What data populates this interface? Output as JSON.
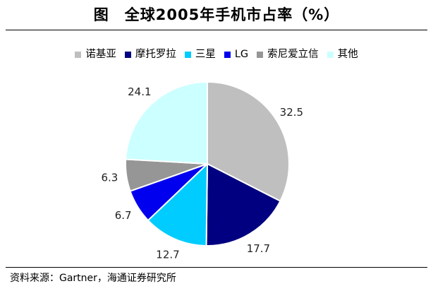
{
  "title": "图　全球2005年手机市占率（%）",
  "source": "资料来源：Gartner，海通证券研究所",
  "chart_data": {
    "type": "pie",
    "title": "全球2005年手机市占率（%）",
    "slices": [
      {
        "name": "诺基亚",
        "value": 32.5,
        "label": "32.5",
        "color": "#bfbfbf"
      },
      {
        "name": "摩托罗拉",
        "value": 17.7,
        "label": "17.7",
        "color": "#000080"
      },
      {
        "name": "三星",
        "value": 12.7,
        "label": "12.7",
        "color": "#00ccff"
      },
      {
        "name": "LG",
        "value": 6.7,
        "label": "6.7",
        "color": "#0000ee"
      },
      {
        "name": "索尼爱立信",
        "value": 6.3,
        "label": "6.3",
        "color": "#969696"
      },
      {
        "name": "其他",
        "value": 24.1,
        "label": "24.1",
        "color": "#ccffff"
      }
    ],
    "start_angle": "12 o'clock",
    "direction": "clockwise",
    "legend_position": "top",
    "grid": false
  }
}
